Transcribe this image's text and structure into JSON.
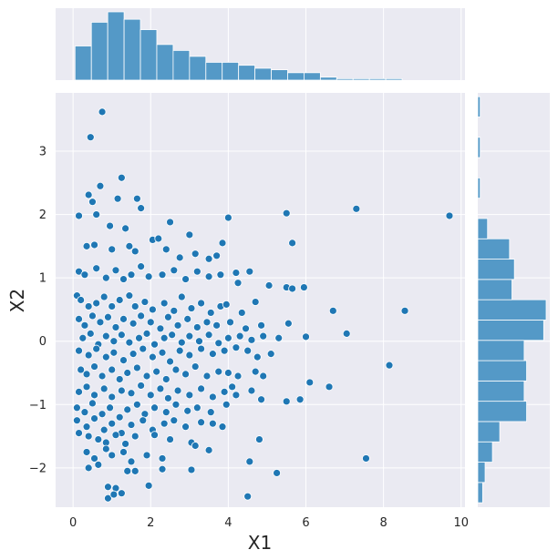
{
  "chart_data": {
    "type": "scatter",
    "title": "",
    "xlabel": "X1",
    "ylabel": "X2",
    "xlim": [
      -0.45,
      10.1
    ],
    "ylim": [
      -2.62,
      3.92
    ],
    "x_ticks": [
      0,
      2,
      4,
      6,
      8,
      10
    ],
    "y_ticks": [
      -2,
      -1,
      0,
      1,
      2,
      3
    ],
    "x_tick_labels": [
      "0",
      "2",
      "4",
      "6",
      "8",
      "10"
    ],
    "y_tick_labels": [
      "−2",
      "−1",
      "0",
      "1",
      "2",
      "3"
    ],
    "grid": true,
    "style": {
      "background": "#eaeaf2",
      "point_color": "#1f77b4",
      "bar_color": "#5499c7",
      "grid_color": "#ffffff"
    },
    "points": [
      [
        0.75,
        3.62
      ],
      [
        0.45,
        3.22
      ],
      [
        1.25,
        2.58
      ],
      [
        0.7,
        2.45
      ],
      [
        0.4,
        2.31
      ],
      [
        1.15,
        2.25
      ],
      [
        1.65,
        2.25
      ],
      [
        0.5,
        2.2
      ],
      [
        1.75,
        2.1
      ],
      [
        0.15,
        1.98
      ],
      [
        0.6,
        2.0
      ],
      [
        0.95,
        1.82
      ],
      [
        2.5,
        1.88
      ],
      [
        1.35,
        1.78
      ],
      [
        4.0,
        1.95
      ],
      [
        5.5,
        2.02
      ],
      [
        7.3,
        2.09
      ],
      [
        9.7,
        1.98
      ],
      [
        5.65,
        1.55
      ],
      [
        0.35,
        1.5
      ],
      [
        0.55,
        1.52
      ],
      [
        1.0,
        1.45
      ],
      [
        1.45,
        1.5
      ],
      [
        1.6,
        1.42
      ],
      [
        2.05,
        1.6
      ],
      [
        2.2,
        1.62
      ],
      [
        2.4,
        1.45
      ],
      [
        2.75,
        1.32
      ],
      [
        3.0,
        1.68
      ],
      [
        3.15,
        1.38
      ],
      [
        3.5,
        1.3
      ],
      [
        3.85,
        1.55
      ],
      [
        3.7,
        1.35
      ],
      [
        0.15,
        1.1
      ],
      [
        0.3,
        1.05
      ],
      [
        0.6,
        1.15
      ],
      [
        0.85,
        1.0
      ],
      [
        1.1,
        1.12
      ],
      [
        1.3,
        0.98
      ],
      [
        1.5,
        1.05
      ],
      [
        1.75,
        1.18
      ],
      [
        1.95,
        1.02
      ],
      [
        2.3,
        1.05
      ],
      [
        2.6,
        1.12
      ],
      [
        2.9,
        0.98
      ],
      [
        3.2,
        1.1
      ],
      [
        3.5,
        1.02
      ],
      [
        3.8,
        1.05
      ],
      [
        4.2,
        1.08
      ],
      [
        4.55,
        1.1
      ],
      [
        4.25,
        0.92
      ],
      [
        5.05,
        0.88
      ],
      [
        5.5,
        0.85
      ],
      [
        5.65,
        0.83
      ],
      [
        5.95,
        0.85
      ],
      [
        4.7,
        0.62
      ],
      [
        0.1,
        0.72
      ],
      [
        0.2,
        0.65
      ],
      [
        0.4,
        0.55
      ],
      [
        0.6,
        0.6
      ],
      [
        0.8,
        0.7
      ],
      [
        1.0,
        0.55
      ],
      [
        1.2,
        0.65
      ],
      [
        1.45,
        0.72
      ],
      [
        1.6,
        0.55
      ],
      [
        1.85,
        0.62
      ],
      [
        2.05,
        0.5
      ],
      [
        2.35,
        0.6
      ],
      [
        2.6,
        0.48
      ],
      [
        2.8,
        0.7
      ],
      [
        3.05,
        0.52
      ],
      [
        3.3,
        0.6
      ],
      [
        3.55,
        0.45
      ],
      [
        3.8,
        0.55
      ],
      [
        3.95,
        0.58
      ],
      [
        4.35,
        0.45
      ],
      [
        6.7,
        0.48
      ],
      [
        8.55,
        0.48
      ],
      [
        5.55,
        0.28
      ],
      [
        7.05,
        0.12
      ],
      [
        0.15,
        0.35
      ],
      [
        0.3,
        0.25
      ],
      [
        0.5,
        0.4
      ],
      [
        0.7,
        0.3
      ],
      [
        0.9,
        0.38
      ],
      [
        1.1,
        0.22
      ],
      [
        1.3,
        0.35
      ],
      [
        1.55,
        0.28
      ],
      [
        1.75,
        0.4
      ],
      [
        2.0,
        0.3
      ],
      [
        2.25,
        0.2
      ],
      [
        2.45,
        0.38
      ],
      [
        2.7,
        0.25
      ],
      [
        2.95,
        0.35
      ],
      [
        3.2,
        0.22
      ],
      [
        3.45,
        0.3
      ],
      [
        3.7,
        0.25
      ],
      [
        4.05,
        0.3
      ],
      [
        4.45,
        0.2
      ],
      [
        4.85,
        0.25
      ],
      [
        0.25,
        0.05
      ],
      [
        0.45,
        0.12
      ],
      [
        0.65,
        -0.05
      ],
      [
        0.85,
        0.08
      ],
      [
        1.05,
        0.0
      ],
      [
        1.25,
        0.1
      ],
      [
        1.45,
        -0.02
      ],
      [
        1.7,
        0.05
      ],
      [
        1.9,
        0.12
      ],
      [
        2.1,
        -0.05
      ],
      [
        2.35,
        0.05
      ],
      [
        2.55,
        0.1
      ],
      [
        2.8,
        -0.02
      ],
      [
        3.0,
        0.08
      ],
      [
        3.25,
        0.0
      ],
      [
        3.5,
        0.1
      ],
      [
        3.75,
        -0.03
      ],
      [
        4.0,
        0.05
      ],
      [
        4.3,
        0.08
      ],
      [
        4.6,
        0.02
      ],
      [
        4.9,
        0.08
      ],
      [
        5.3,
        0.05
      ],
      [
        6.0,
        0.07
      ],
      [
        0.15,
        -0.15
      ],
      [
        0.4,
        -0.22
      ],
      [
        0.6,
        -0.12
      ],
      [
        0.85,
        -0.25
      ],
      [
        1.05,
        -0.18
      ],
      [
        1.3,
        -0.3
      ],
      [
        1.55,
        -0.2
      ],
      [
        1.8,
        -0.12
      ],
      [
        2.05,
        -0.25
      ],
      [
        2.3,
        -0.18
      ],
      [
        2.5,
        -0.32
      ],
      [
        2.75,
        -0.15
      ],
      [
        3.0,
        -0.22
      ],
      [
        3.3,
        -0.12
      ],
      [
        3.6,
        -0.2
      ],
      [
        3.9,
        -0.15
      ],
      [
        4.2,
        -0.1
      ],
      [
        4.5,
        -0.15
      ],
      [
        4.75,
        -0.25
      ],
      [
        5.1,
        -0.2
      ],
      [
        8.15,
        -0.38
      ],
      [
        0.2,
        -0.45
      ],
      [
        0.35,
        -0.52
      ],
      [
        0.55,
        -0.4
      ],
      [
        0.75,
        -0.55
      ],
      [
        1.0,
        -0.45
      ],
      [
        1.2,
        -0.6
      ],
      [
        1.4,
        -0.5
      ],
      [
        1.65,
        -0.42
      ],
      [
        1.9,
        -0.55
      ],
      [
        2.15,
        -0.48
      ],
      [
        2.4,
        -0.6
      ],
      [
        2.65,
        -0.45
      ],
      [
        2.9,
        -0.52
      ],
      [
        3.15,
        -0.4
      ],
      [
        3.45,
        -0.55
      ],
      [
        3.75,
        -0.48
      ],
      [
        4.0,
        -0.5
      ],
      [
        4.25,
        -0.55
      ],
      [
        4.7,
        -0.48
      ],
      [
        4.9,
        -0.55
      ],
      [
        0.15,
        -0.8
      ],
      [
        0.35,
        -0.72
      ],
      [
        0.55,
        -0.85
      ],
      [
        0.8,
        -0.75
      ],
      [
        1.0,
        -0.88
      ],
      [
        1.25,
        -0.78
      ],
      [
        1.5,
        -0.82
      ],
      [
        1.75,
        -0.7
      ],
      [
        2.0,
        -0.85
      ],
      [
        2.25,
        -0.75
      ],
      [
        2.45,
        -0.9
      ],
      [
        2.7,
        -0.78
      ],
      [
        3.0,
        -0.85
      ],
      [
        3.3,
        -0.75
      ],
      [
        3.6,
        -0.88
      ],
      [
        3.9,
        -0.8
      ],
      [
        4.1,
        -0.72
      ],
      [
        4.2,
        -0.85
      ],
      [
        4.6,
        -0.78
      ],
      [
        6.1,
        -0.65
      ],
      [
        6.6,
        -0.72
      ],
      [
        0.1,
        -1.05
      ],
      [
        0.3,
        -1.12
      ],
      [
        0.5,
        -0.98
      ],
      [
        0.75,
        -1.15
      ],
      [
        0.95,
        -1.05
      ],
      [
        1.2,
        -1.2
      ],
      [
        1.4,
        -1.08
      ],
      [
        1.65,
        -1.0
      ],
      [
        1.85,
        -1.15
      ],
      [
        2.1,
        -1.05
      ],
      [
        2.4,
        -1.12
      ],
      [
        2.65,
        -1.0
      ],
      [
        2.95,
        -1.1
      ],
      [
        3.2,
        -1.05
      ],
      [
        3.55,
        -1.12
      ],
      [
        3.95,
        -1.0
      ],
      [
        4.85,
        -0.92
      ],
      [
        5.5,
        -0.95
      ],
      [
        5.85,
        -0.92
      ],
      [
        0.1,
        -1.25
      ],
      [
        0.35,
        -1.35
      ],
      [
        0.55,
        -1.22
      ],
      [
        0.8,
        -1.4
      ],
      [
        1.0,
        -1.3
      ],
      [
        1.25,
        -1.45
      ],
      [
        1.5,
        -1.32
      ],
      [
        1.8,
        -1.25
      ],
      [
        2.05,
        -1.4
      ],
      [
        2.35,
        -1.3
      ],
      [
        2.6,
        -1.25
      ],
      [
        2.9,
        -1.35
      ],
      [
        3.3,
        -1.28
      ],
      [
        3.6,
        -1.3
      ],
      [
        3.85,
        -1.35
      ],
      [
        0.15,
        -1.45
      ],
      [
        0.4,
        -1.5
      ],
      [
        0.65,
        -1.55
      ],
      [
        0.85,
        -1.6
      ],
      [
        1.1,
        -1.48
      ],
      [
        1.35,
        -1.62
      ],
      [
        1.6,
        -1.5
      ],
      [
        2.1,
        -1.48
      ],
      [
        2.5,
        -1.55
      ],
      [
        3.05,
        -1.6
      ],
      [
        3.15,
        -1.65
      ],
      [
        4.8,
        -1.55
      ],
      [
        0.35,
        -1.75
      ],
      [
        0.55,
        -1.85
      ],
      [
        0.85,
        -1.7
      ],
      [
        1.0,
        -1.8
      ],
      [
        1.3,
        -1.75
      ],
      [
        1.5,
        -1.9
      ],
      [
        1.9,
        -1.8
      ],
      [
        2.3,
        -1.85
      ],
      [
        3.5,
        -1.72
      ],
      [
        4.55,
        -1.9
      ],
      [
        7.55,
        -1.85
      ],
      [
        0.4,
        -2.0
      ],
      [
        0.65,
        -1.95
      ],
      [
        1.4,
        -2.05
      ],
      [
        1.6,
        -2.05
      ],
      [
        2.3,
        -2.02
      ],
      [
        3.05,
        -2.03
      ],
      [
        5.25,
        -2.08
      ],
      [
        0.9,
        -2.3
      ],
      [
        1.1,
        -2.32
      ],
      [
        1.95,
        -2.28
      ],
      [
        0.9,
        -2.48
      ],
      [
        1.05,
        -2.42
      ],
      [
        1.25,
        -2.4
      ],
      [
        4.5,
        -2.45
      ]
    ],
    "x_histogram": {
      "bin_start": 0.05,
      "bin_width": 0.4215,
      "counts": [
        23,
        39,
        46,
        41,
        34,
        24,
        20,
        16,
        12,
        12,
        10,
        8,
        7,
        5,
        5,
        2,
        1,
        1,
        1,
        1,
        0,
        0,
        0,
        0,
        0,
        0,
        0,
        0,
        0,
        0,
        0,
        0,
        0,
        0,
        0,
        0,
        0,
        0,
        0,
        0,
        0,
        0,
        0,
        0,
        0,
        0,
        0,
        0,
        0,
        0,
        0,
        0,
        0,
        1
      ]
    },
    "y_histogram": {
      "bin_start": -2.55,
      "bin_width": 0.3205,
      "counts": [
        2,
        3,
        6,
        9,
        20,
        19,
        20,
        19,
        27,
        28,
        14,
        15,
        13,
        4,
        0,
        1,
        0,
        1,
        0,
        1
      ]
    }
  }
}
